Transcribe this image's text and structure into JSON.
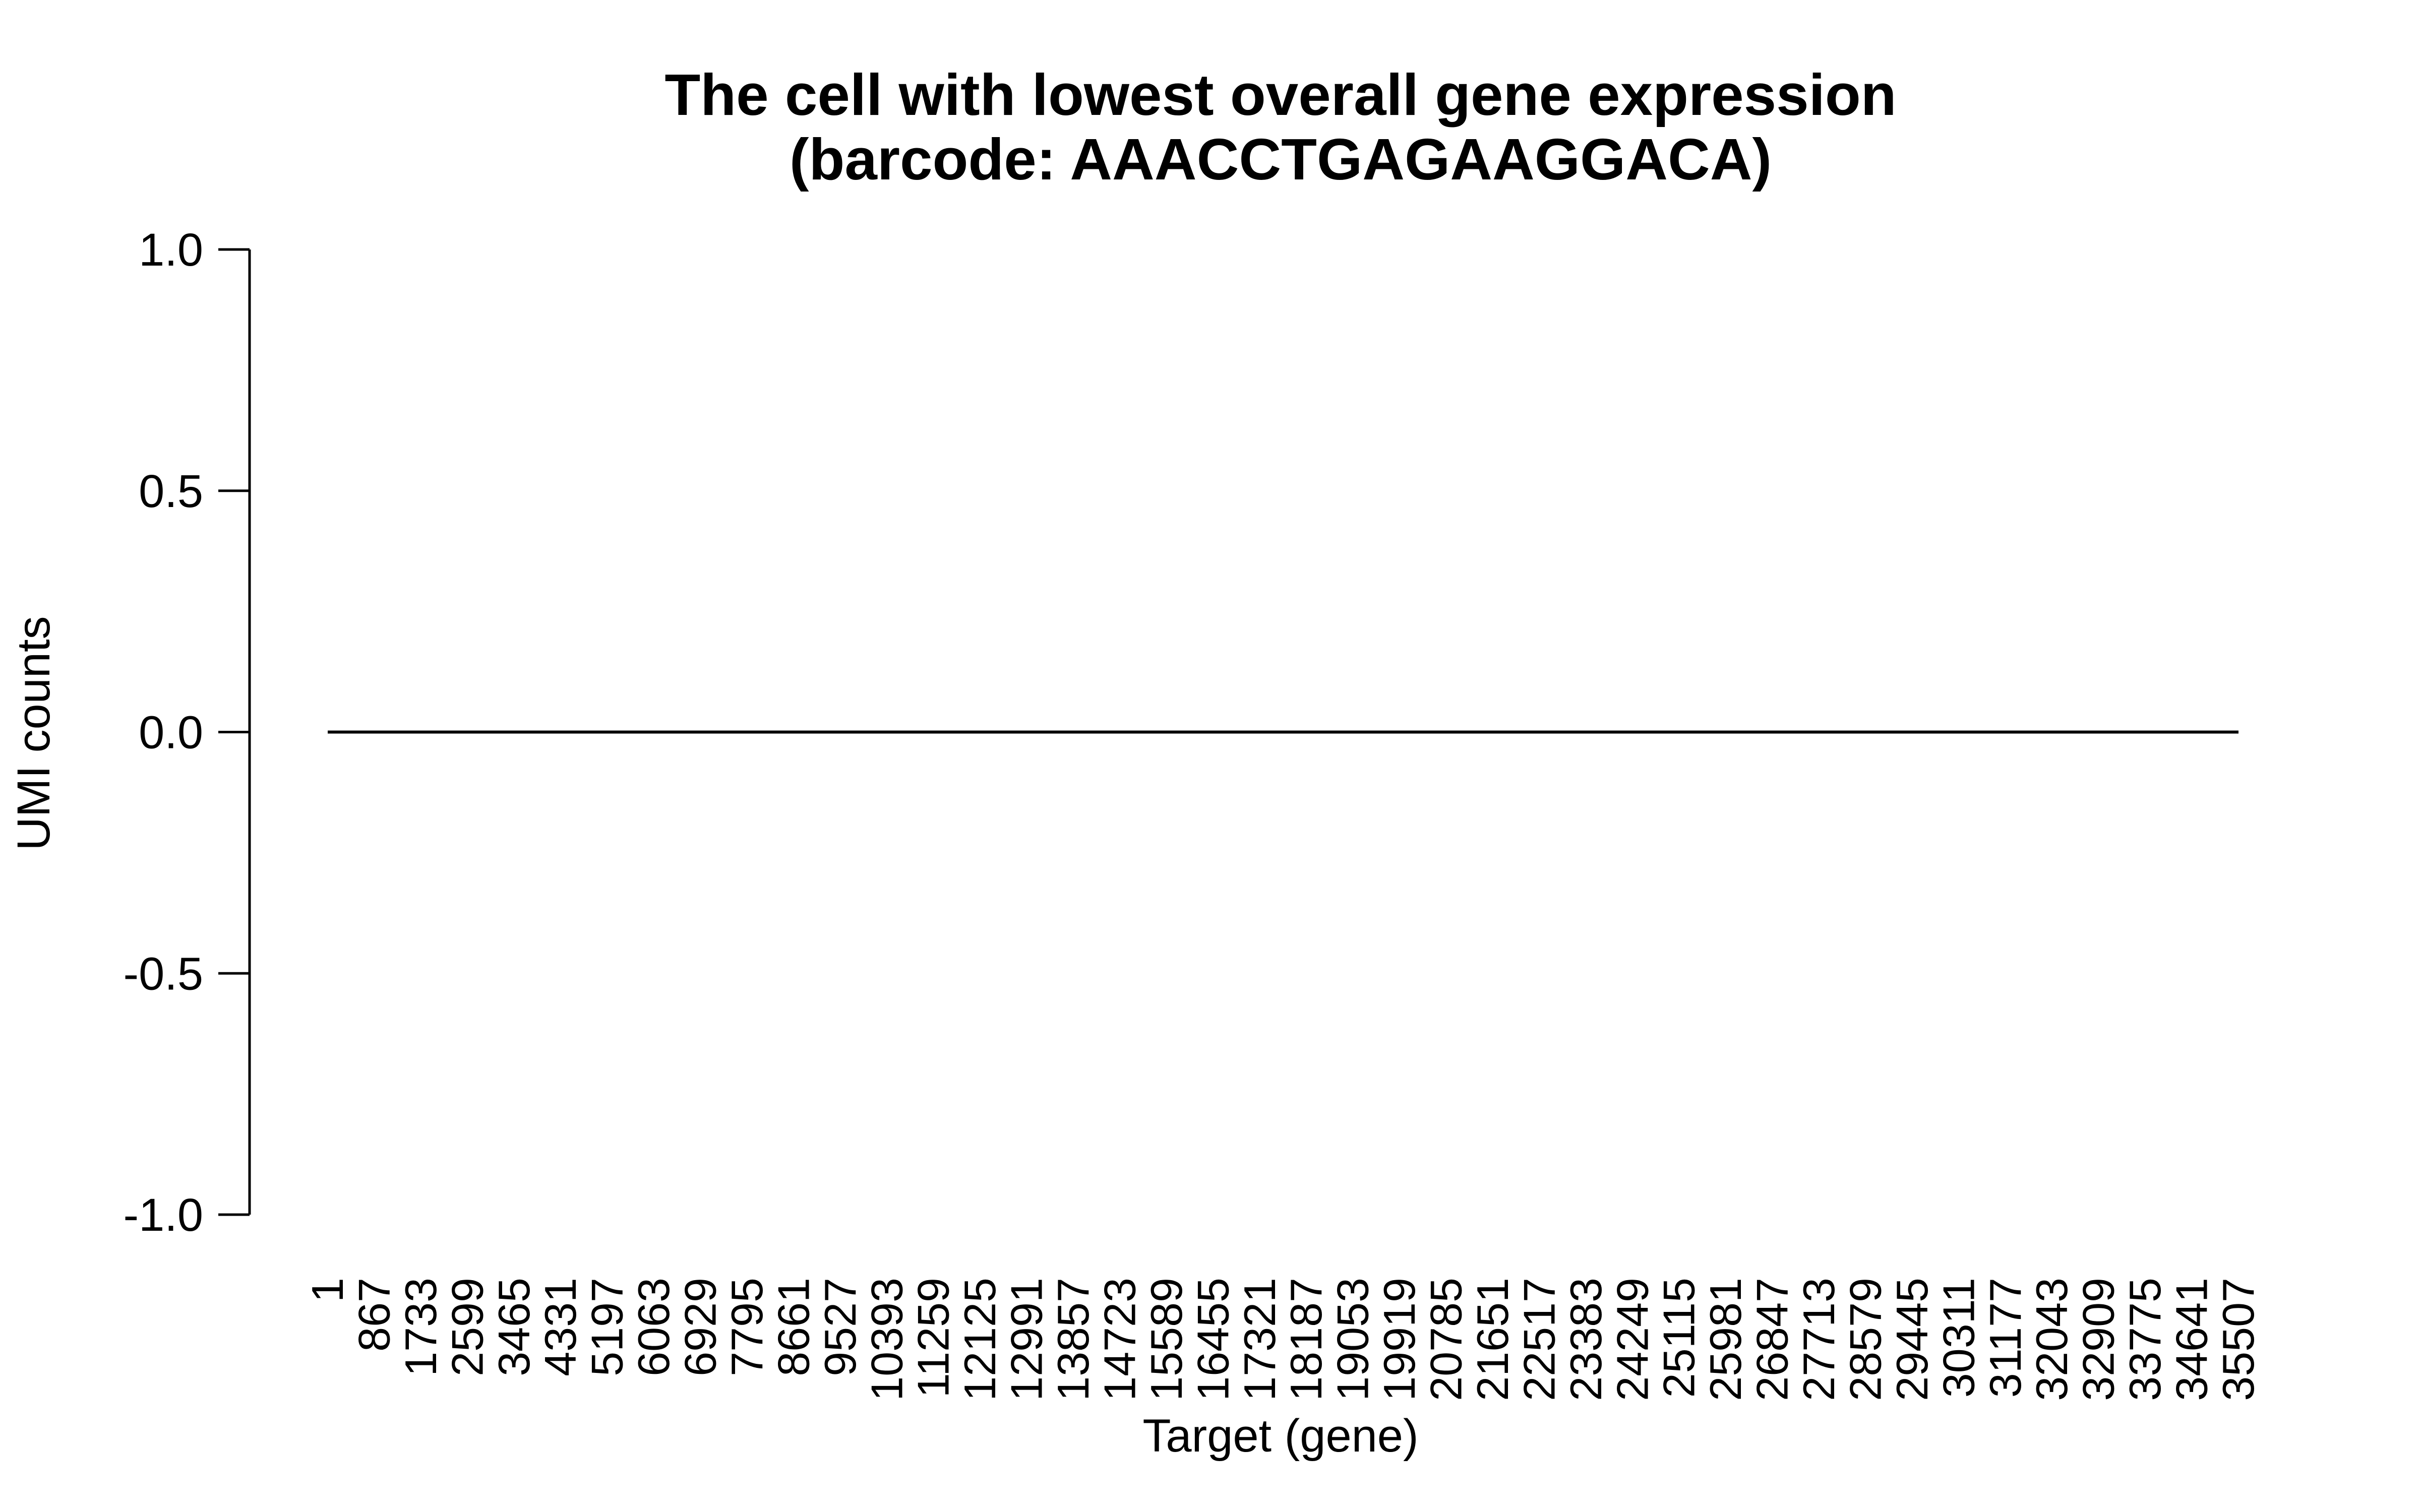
{
  "chart_data": {
    "type": "line",
    "title": "The cell with lowest overall gene expression",
    "subtitle": "(barcode: AAACCTGAGAAGGACA)",
    "xlabel": "Target (gene)",
    "ylabel": "UMI counts",
    "ylim": [
      -1.0,
      1.0
    ],
    "y_ticks": [
      "-1.0",
      "-0.5",
      "0.0",
      "0.5",
      "1.0"
    ],
    "x_ticks": [
      "1",
      "867",
      "1733",
      "2599",
      "3465",
      "4331",
      "5197",
      "6063",
      "6929",
      "7795",
      "8661",
      "9527",
      "10393",
      "11259",
      "12125",
      "12991",
      "13857",
      "14723",
      "15589",
      "16455",
      "17321",
      "18187",
      "19053",
      "19919",
      "20785",
      "21651",
      "22517",
      "23383",
      "24249",
      "25115",
      "25981",
      "26847",
      "27713",
      "28579",
      "29445",
      "30311",
      "31177",
      "32043",
      "32909",
      "33775",
      "34641",
      "35507"
    ],
    "xlim": [
      1,
      35507
    ],
    "series": [
      {
        "x": [
          1,
          35507
        ],
        "values": [
          0,
          0
        ],
        "color": "#000000"
      }
    ],
    "grid": false,
    "legend": "none"
  }
}
